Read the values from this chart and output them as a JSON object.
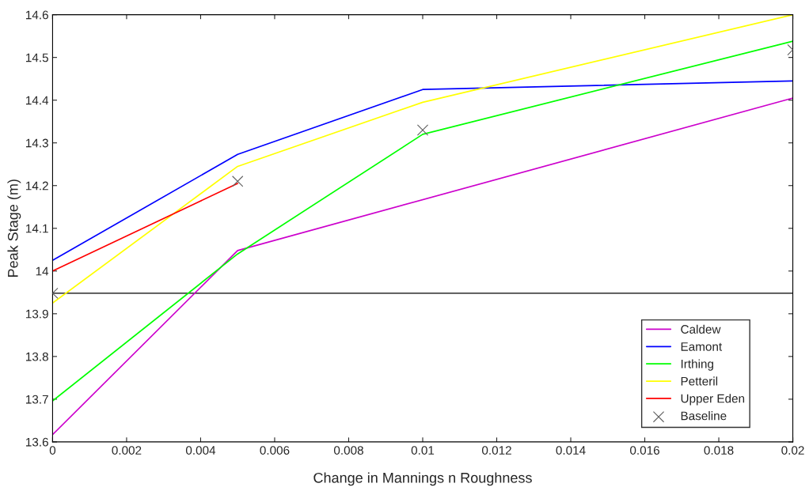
{
  "chart_data": {
    "type": "line",
    "xlabel": "Change in Mannings n Roughness",
    "ylabel": "Peak Stage (m)",
    "xlim": [
      0,
      0.02
    ],
    "xticks": [
      0,
      0.002,
      0.004,
      0.006,
      0.008,
      0.01,
      0.012,
      0.014,
      0.016,
      0.018,
      0.02
    ],
    "ylim": [
      13.6,
      14.6
    ],
    "yticks": [
      13.6,
      13.7,
      13.8,
      13.9,
      14,
      14.1,
      14.2,
      14.3,
      14.4,
      14.5,
      14.6
    ],
    "grid": false,
    "legend": "bottom right",
    "marker": "none",
    "ref_lines": [
      {
        "axis": "y",
        "value": 13.948,
        "color": "#000000",
        "line_style": "solid"
      }
    ],
    "series": [
      {
        "name": "Caldew",
        "color": "#cc00cc",
        "x": [
          0,
          0.005,
          0.02
        ],
        "values": [
          13.617,
          14.048,
          14.405
        ]
      },
      {
        "name": "Eamont",
        "color": "#0000ff",
        "x": [
          0,
          0.005,
          0.01,
          0.02
        ],
        "values": [
          14.025,
          14.273,
          14.425,
          14.445
        ]
      },
      {
        "name": "Irthing",
        "color": "#00ff00",
        "x": [
          0,
          0.005,
          0.01,
          0.02
        ],
        "values": [
          13.696,
          14.04,
          14.32,
          14.538
        ]
      },
      {
        "name": "Petteril",
        "color": "#ffff00",
        "x": [
          0,
          0.005,
          0.01,
          0.02
        ],
        "values": [
          13.925,
          14.245,
          14.395,
          14.6
        ]
      },
      {
        "name": "Upper Eden",
        "color": "#ff0000",
        "x": [
          0,
          0.005
        ],
        "values": [
          14.0,
          14.205
        ]
      },
      {
        "name": "Baseline",
        "type": "scatter",
        "marker": "cross",
        "color": "#606060",
        "x": [
          0,
          0.005,
          0.01,
          0.02
        ],
        "values": [
          13.948,
          14.21,
          14.33,
          14.518
        ]
      }
    ]
  }
}
